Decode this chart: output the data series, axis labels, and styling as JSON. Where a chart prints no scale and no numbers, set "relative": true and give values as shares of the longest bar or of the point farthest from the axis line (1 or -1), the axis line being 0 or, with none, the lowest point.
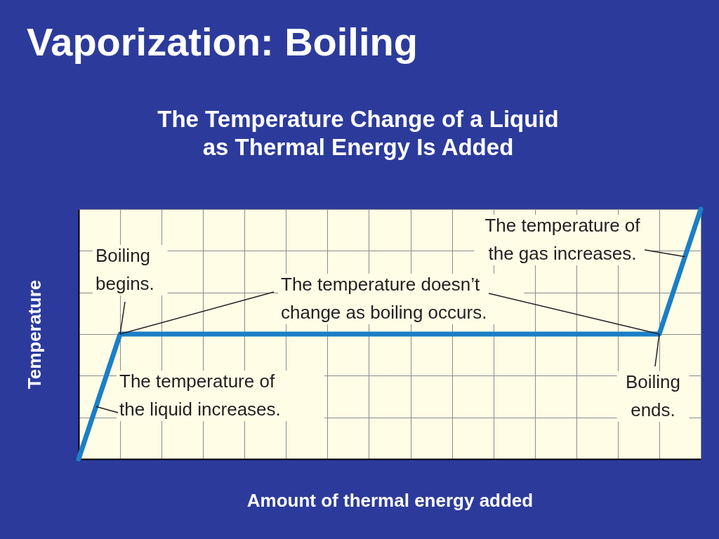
{
  "chart_data": {
    "type": "line",
    "title": "Vaporization: Boiling",
    "subtitle": "The Temperature Change of a Liquid as Thermal Energy Is Added",
    "xlabel": "Amount of thermal energy added",
    "ylabel": "Temperature",
    "categories": [
      null,
      null,
      null,
      null,
      null,
      null,
      null,
      null,
      null,
      null,
      null,
      null,
      null,
      null,
      null,
      null
    ],
    "values": [
      0,
      0.5,
      0.5,
      0.5,
      0.5,
      0.5,
      0.5,
      0.5,
      0.5,
      0.5,
      0.5,
      0.5,
      0.5,
      0.5,
      0.5,
      1
    ],
    "color": "#1b7fc6",
    "relative": true,
    "grid": true,
    "line_style": "solid",
    "annotations": [
      "The temperature of the gas increases.",
      {
        "text": "Boiling begins.",
        "y": 0.5
      },
      {
        "text": "The temperature doesn’t change as boiling occurs.",
        "y": 0.5
      },
      "The temperature of the liquid increases.",
      {
        "text": "Boiling ends.",
        "y": 0.5
      }
    ]
  }
}
